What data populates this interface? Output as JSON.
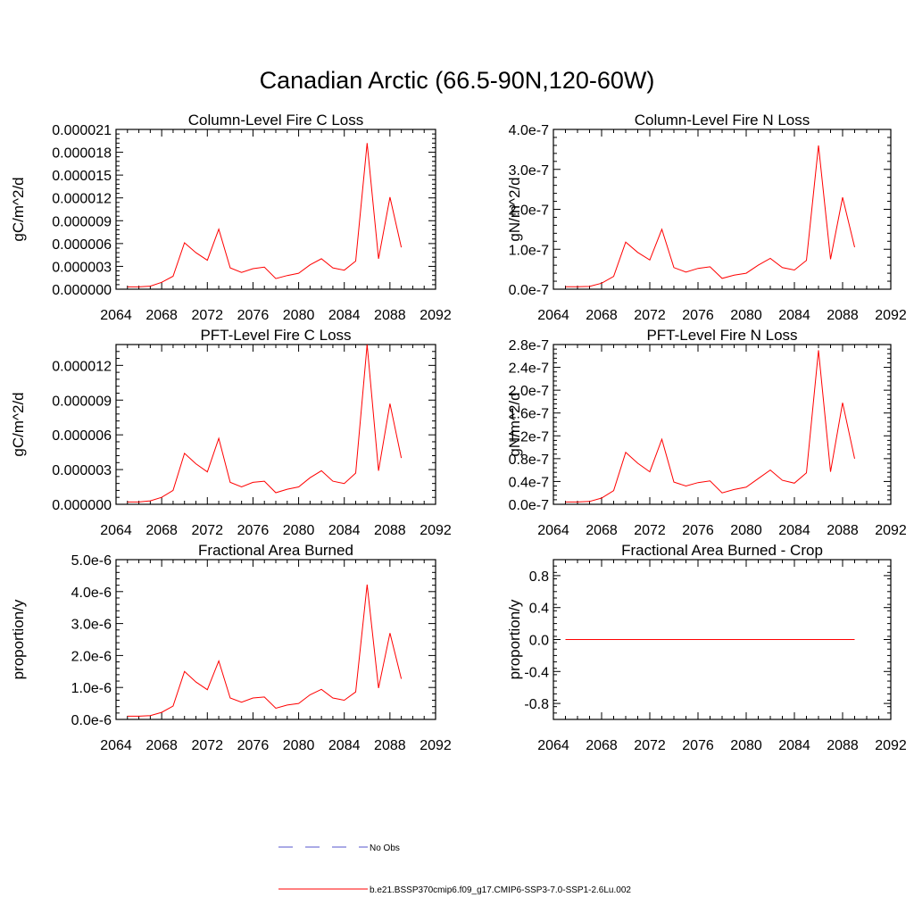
{
  "figure_title": "Canadian Arctic (66.5-90N,120-60W)",
  "legend": [
    {
      "label": "No Obs",
      "color": "#5555cc",
      "style": "dashed"
    },
    {
      "label": "b.e21.BSSP370cmip6.f09_g17.CMIP6-SSP3-7.0-SSP1-2.6Lu.002",
      "color": "#ff0000",
      "style": "solid"
    }
  ],
  "chart_data": [
    {
      "type": "line",
      "title": "Column-Level Fire C Loss",
      "ylabel": "gC/m^2/d",
      "xlim": [
        2064,
        2092
      ],
      "xticks": [
        2064,
        2068,
        2072,
        2076,
        2080,
        2084,
        2088,
        2092
      ],
      "ylim": [
        0,
        2.1e-05
      ],
      "yticks": [
        0,
        3e-06,
        6e-06,
        9e-06,
        1.2e-05,
        1.5e-05,
        1.8e-05,
        2.1e-05
      ],
      "ytick_labels": [
        "0.000000",
        "0.000003",
        "0.000006",
        "0.000009",
        "0.000012",
        "0.000015",
        "0.000018",
        "0.000021"
      ],
      "x": [
        2065,
        2066,
        2067,
        2068,
        2069,
        2070,
        2071,
        2072,
        2073,
        2074,
        2075,
        2076,
        2077,
        2078,
        2079,
        2080,
        2081,
        2082,
        2083,
        2084,
        2085,
        2086,
        2087,
        2088,
        2089
      ],
      "series": [
        {
          "color": "#ff0000",
          "values": [
            3e-07,
            3e-07,
            4e-07,
            9e-07,
            1.7e-06,
            6.1e-06,
            4.8e-06,
            3.8e-06,
            7.9e-06,
            2.8e-06,
            2.2e-06,
            2.7e-06,
            2.9e-06,
            1.4e-06,
            1.8e-06,
            2.1e-06,
            3.2e-06,
            4e-06,
            2.8e-06,
            2.5e-06,
            3.7e-06,
            1.92e-05,
            4e-06,
            1.21e-05,
            5.5e-06
          ]
        }
      ]
    },
    {
      "type": "line",
      "title": "Column-Level Fire N Loss",
      "ylabel": "gN/m^2/d",
      "xlim": [
        2064,
        2092
      ],
      "xticks": [
        2064,
        2068,
        2072,
        2076,
        2080,
        2084,
        2088,
        2092
      ],
      "ylim": [
        0,
        4e-07
      ],
      "yticks": [
        0,
        1e-07,
        2e-07,
        3e-07,
        4e-07
      ],
      "ytick_labels": [
        "0.0e-7",
        "1.0e-7",
        "2.0e-7",
        "3.0e-7",
        "4.0e-7"
      ],
      "x": [
        2065,
        2066,
        2067,
        2068,
        2069,
        2070,
        2071,
        2072,
        2073,
        2074,
        2075,
        2076,
        2077,
        2078,
        2079,
        2080,
        2081,
        2082,
        2083,
        2084,
        2085,
        2086,
        2087,
        2088,
        2089
      ],
      "series": [
        {
          "color": "#ff0000",
          "values": [
            6e-09,
            6e-09,
            7e-09,
            1.5e-08,
            3.2e-08,
            1.18e-07,
            9.2e-08,
            7.3e-08,
            1.5e-07,
            5.4e-08,
            4.3e-08,
            5.2e-08,
            5.6e-08,
            2.7e-08,
            3.5e-08,
            4e-08,
            6e-08,
            7.7e-08,
            5.4e-08,
            4.8e-08,
            7.2e-08,
            3.6e-07,
            7.5e-08,
            2.3e-07,
            1.05e-07
          ]
        }
      ]
    },
    {
      "type": "line",
      "title": "PFT-Level Fire C Loss",
      "ylabel": "gC/m^2/d",
      "xlim": [
        2064,
        2092
      ],
      "xticks": [
        2064,
        2068,
        2072,
        2076,
        2080,
        2084,
        2088,
        2092
      ],
      "ylim": [
        0,
        1.38e-05
      ],
      "yticks": [
        0,
        3e-06,
        6e-06,
        9e-06,
        1.2e-05
      ],
      "ytick_labels": [
        "0.000000",
        "0.000003",
        "0.000006",
        "0.000009",
        "0.000012"
      ],
      "x": [
        2065,
        2066,
        2067,
        2068,
        2069,
        2070,
        2071,
        2072,
        2073,
        2074,
        2075,
        2076,
        2077,
        2078,
        2079,
        2080,
        2081,
        2082,
        2083,
        2084,
        2085,
        2086,
        2087,
        2088,
        2089
      ],
      "series": [
        {
          "color": "#ff0000",
          "values": [
            2e-07,
            2e-07,
            3e-07,
            6e-07,
            1.2e-06,
            4.4e-06,
            3.5e-06,
            2.8e-06,
            5.7e-06,
            1.9e-06,
            1.5e-06,
            1.9e-06,
            2e-06,
            1e-06,
            1.3e-06,
            1.5e-06,
            2.3e-06,
            2.9e-06,
            2e-06,
            1.8e-06,
            2.7e-06,
            1.38e-05,
            2.9e-06,
            8.7e-06,
            4e-06
          ]
        }
      ]
    },
    {
      "type": "line",
      "title": "PFT-Level Fire N Loss",
      "ylabel": "gN/m^2/d",
      "xlim": [
        2064,
        2092
      ],
      "xticks": [
        2064,
        2068,
        2072,
        2076,
        2080,
        2084,
        2088,
        2092
      ],
      "ylim": [
        0,
        2.8e-07
      ],
      "yticks": [
        0,
        4e-08,
        8e-08,
        1.2e-07,
        1.6e-07,
        2e-07,
        2.4e-07,
        2.8e-07
      ],
      "ytick_labels": [
        "0.0e-7",
        "0.4e-7",
        "0.8e-7",
        "1.2e-7",
        "1.6e-7",
        "2.0e-7",
        "2.4e-7",
        "2.8e-7"
      ],
      "x": [
        2065,
        2066,
        2067,
        2068,
        2069,
        2070,
        2071,
        2072,
        2073,
        2074,
        2075,
        2076,
        2077,
        2078,
        2079,
        2080,
        2081,
        2082,
        2083,
        2084,
        2085,
        2086,
        2087,
        2088,
        2089
      ],
      "series": [
        {
          "color": "#ff0000",
          "values": [
            4e-09,
            4e-09,
            5e-09,
            1.1e-08,
            2.4e-08,
            9.1e-08,
            7.2e-08,
            5.7e-08,
            1.14e-07,
            3.9e-08,
            3.2e-08,
            3.8e-08,
            4.1e-08,
            2e-08,
            2.6e-08,
            3e-08,
            4.5e-08,
            6e-08,
            4.2e-08,
            3.7e-08,
            5.5e-08,
            2.7e-07,
            5.7e-08,
            1.78e-07,
            8e-08
          ]
        }
      ]
    },
    {
      "type": "line",
      "title": "Fractional Area Burned",
      "ylabel": "proportion/y",
      "xlim": [
        2064,
        2092
      ],
      "xticks": [
        2064,
        2068,
        2072,
        2076,
        2080,
        2084,
        2088,
        2092
      ],
      "ylim": [
        0,
        5e-06
      ],
      "yticks": [
        0,
        1e-06,
        2e-06,
        3e-06,
        4e-06,
        5e-06
      ],
      "ytick_labels": [
        "0.0e-6",
        "1.0e-6",
        "2.0e-6",
        "3.0e-6",
        "4.0e-6",
        "5.0e-6"
      ],
      "x": [
        2065,
        2066,
        2067,
        2068,
        2069,
        2070,
        2071,
        2072,
        2073,
        2074,
        2075,
        2076,
        2077,
        2078,
        2079,
        2080,
        2081,
        2082,
        2083,
        2084,
        2085,
        2086,
        2087,
        2088,
        2089
      ],
      "series": [
        {
          "color": "#ff0000",
          "values": [
            1e-07,
            1e-07,
            1.2e-07,
            2.2e-07,
            4.2e-07,
            1.5e-06,
            1.17e-06,
            9.3e-07,
            1.83e-06,
            6.7e-07,
            5.4e-07,
            6.7e-07,
            7e-07,
            3.5e-07,
            4.5e-07,
            5e-07,
            7.7e-07,
            9.4e-07,
            6.7e-07,
            6e-07,
            8.6e-07,
            4.22e-06,
            9.8e-07,
            2.7e-06,
            1.27e-06
          ]
        }
      ]
    },
    {
      "type": "line",
      "title": "Fractional Area Burned - Crop",
      "ylabel": "proportion/y",
      "xlim": [
        2064,
        2092
      ],
      "xticks": [
        2064,
        2068,
        2072,
        2076,
        2080,
        2084,
        2088,
        2092
      ],
      "ylim": [
        -1,
        1
      ],
      "yticks": [
        -0.8,
        -0.4,
        0,
        0.4,
        0.8
      ],
      "ytick_labels": [
        "-0.8",
        "-0.4",
        "0.0",
        "0.4",
        "0.8"
      ],
      "x": [
        2065,
        2066,
        2067,
        2068,
        2069,
        2070,
        2071,
        2072,
        2073,
        2074,
        2075,
        2076,
        2077,
        2078,
        2079,
        2080,
        2081,
        2082,
        2083,
        2084,
        2085,
        2086,
        2087,
        2088,
        2089
      ],
      "series": [
        {
          "color": "#ff0000",
          "values": [
            0,
            0,
            0,
            0,
            0,
            0,
            0,
            0,
            0,
            0,
            0,
            0,
            0,
            0,
            0,
            0,
            0,
            0,
            0,
            0,
            0,
            0,
            0,
            0,
            0
          ]
        }
      ]
    }
  ]
}
